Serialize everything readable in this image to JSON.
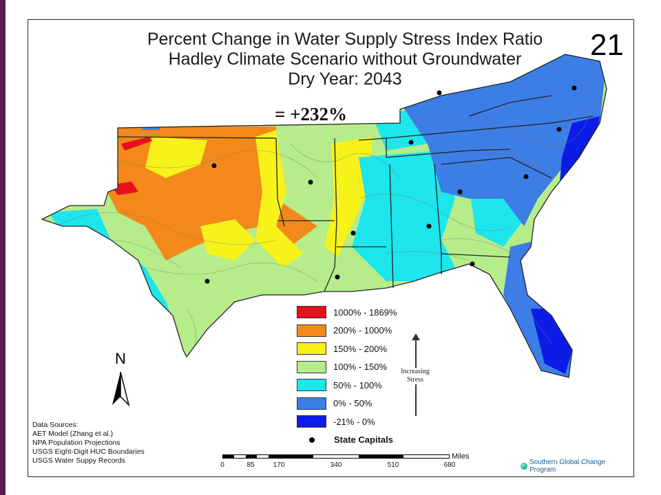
{
  "slide_number": "21",
  "title_lines": [
    "Percent Change in Water Supply Stress Index Ratio",
    "Hadley Climate Scenario without Groundwater",
    "Dry Year: 2043"
  ],
  "annotation": "= +232%",
  "legend": {
    "items": [
      {
        "label": "1000% - 1869%",
        "color": "#e8111b"
      },
      {
        "label": "200% - 1000%",
        "color": "#f2891a"
      },
      {
        "label": "150% - 200%",
        "color": "#f7f21a"
      },
      {
        "label": "100% - 150%",
        "color": "#b6ec8a"
      },
      {
        "label": "50% - 100%",
        "color": "#1de6ec"
      },
      {
        "label": "0% - 50%",
        "color": "#3d7de6"
      },
      {
        "label": "-21% - 0%",
        "color": "#0c1ce6"
      }
    ],
    "capitals_label": "State Capitals",
    "stress_label_line1": "Increasing",
    "stress_label_line2": "Stress"
  },
  "north_label": "N",
  "data_sources": [
    "Data Sources:",
    "AET Model (Zhang et al.)",
    "NPA Population Projections",
    "USGS Eight-Digit HUC Boundaries",
    "USGS Water Suppy Records"
  ],
  "scale_bar": {
    "unit": "Miles",
    "ticks": [
      "0",
      "85",
      "170",
      "340",
      "510",
      "680"
    ]
  },
  "logo_text": "Southern Global Change Program"
}
